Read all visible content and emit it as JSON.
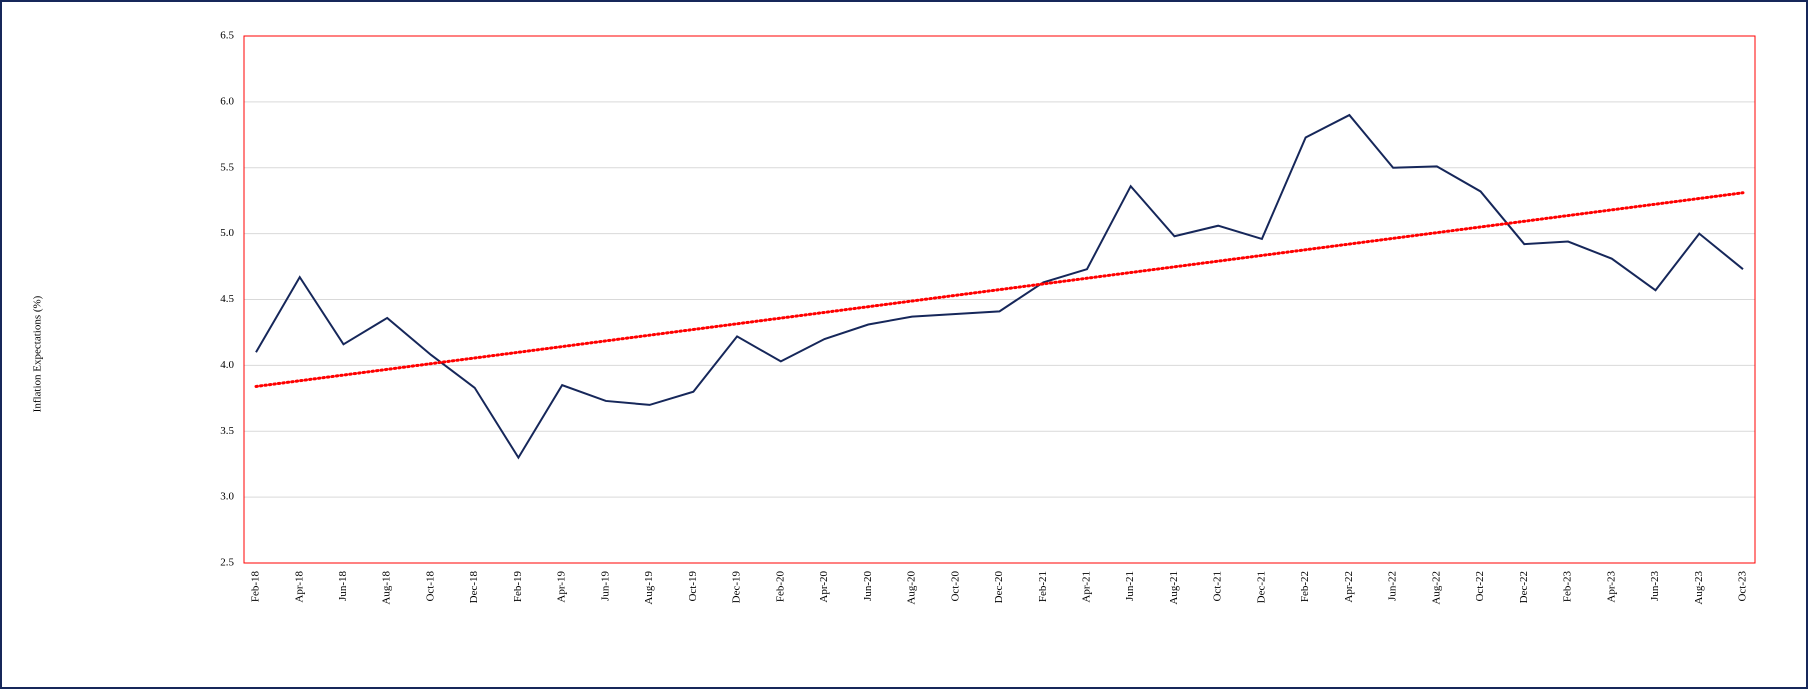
{
  "chart_data": {
    "type": "line",
    "y_label": "Inflation Expectations (%)",
    "categories": [
      "Feb-18",
      "Apr-18",
      "Jun-18",
      "Aug-18",
      "Oct-18",
      "Dec-18",
      "Feb-19",
      "Apr-19",
      "Jun-19",
      "Aug-19",
      "Oct-19",
      "Dec-19",
      "Feb-20",
      "Apr-20",
      "Jun-20",
      "Aug-20",
      "Oct-20",
      "Dec-20",
      "Feb-21",
      "Apr-21",
      "Jun-21",
      "Aug-21",
      "Oct-21",
      "Dec-21",
      "Feb-22",
      "Apr-22",
      "Jun-22",
      "Aug-22",
      "Oct-22",
      "Dec-22",
      "Feb-23",
      "Apr-23",
      "Jun-23",
      "Aug-23",
      "Oct-23"
    ],
    "values": [
      4.1,
      4.67,
      4.16,
      4.36,
      4.08,
      3.83,
      3.3,
      3.85,
      3.73,
      3.7,
      3.8,
      4.22,
      4.03,
      4.2,
      4.31,
      4.37,
      4.39,
      4.41,
      4.63,
      4.73,
      5.36,
      4.98,
      5.06,
      4.96,
      5.73,
      5.9,
      5.5,
      5.51,
      5.32,
      4.92,
      4.94,
      4.81,
      4.57,
      5.0,
      4.73
    ],
    "color": "#16275a",
    "trendline": {
      "start": 3.84,
      "end": 5.31,
      "color": "#ff0000"
    },
    "ylim": [
      2.5,
      6.5
    ],
    "yticks": [
      2.5,
      {
        "value": 3,
        "label": "3.0"
      },
      3.5,
      {
        "value": 4,
        "label": "4.0"
      },
      4.5,
      {
        "value": 5,
        "label": "5.0"
      },
      5.5,
      {
        "value": 6,
        "label": "6.0"
      },
      6.5
    ],
    "grid": true
  }
}
